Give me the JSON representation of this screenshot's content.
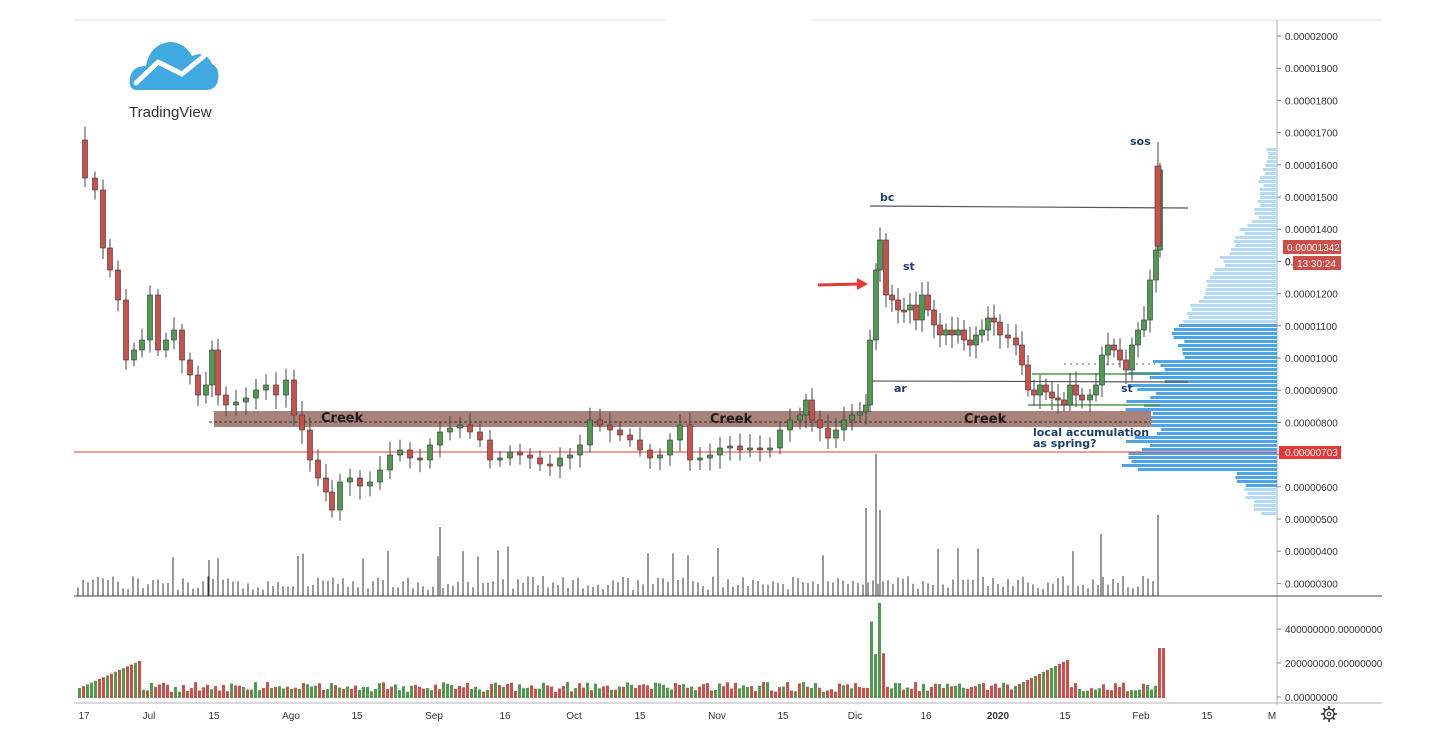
{
  "branding": {
    "logo_text": "TradingView"
  },
  "price_axis": {
    "ticks": [
      "0.00002000",
      "0.00001900",
      "0.00001800",
      "0.00001700",
      "0.00001600",
      "0.00001500",
      "0.00001400",
      "0.00001300",
      "0.00001200",
      "0.00001100",
      "0.00001000",
      "0.00000900",
      "0.00000800",
      "0.00000700",
      "0.00000600",
      "0.00000500",
      "0.00000400",
      "0.00000300"
    ],
    "current_price_label": "0.00001342",
    "countdown_label": "13:30:24",
    "support_price_label": "0.00000703",
    "partial_label": "0."
  },
  "volume_axis": {
    "ticks": [
      "400000000.00000000",
      "200000000.00000000",
      "0.00000000"
    ]
  },
  "time_axis": {
    "ticks": [
      "17",
      "Jul",
      "15",
      "Ago",
      "15",
      "Sep",
      "16",
      "Oct",
      "15",
      "Nov",
      "15",
      "Dic",
      "16",
      "2020",
      "15",
      "Feb",
      "15",
      "M"
    ]
  },
  "annotations": {
    "bc": "bc",
    "st1": "st",
    "ar": "ar",
    "st2": "st",
    "sos": "sos",
    "creek1": "Creek",
    "creek2": "Creek",
    "creek3": "Creek",
    "local_line1": "local accumulation",
    "local_line2": "as spring?"
  },
  "colors": {
    "up": "#4f9a4f",
    "down": "#cc4f4a",
    "creek_band": "#a9837a",
    "support_line": "#e53935",
    "profile_dark": "#4da3e8",
    "profile_light": "#b5daf3",
    "badge_red": "#cc4f4a",
    "badge_bright": "#e53935"
  },
  "chart_data": {
    "type": "candlestick",
    "y_range": [
      2.8e-06,
      2.06e-05
    ],
    "x_ticks": [
      "17",
      "Jul",
      "15",
      "Ago",
      "15",
      "Sep",
      "16",
      "Oct",
      "15",
      "Nov",
      "15",
      "Dic",
      "16",
      "2020",
      "15",
      "Feb",
      "15",
      "M"
    ],
    "resistance_bc": 1.47e-05,
    "support_ar": 9.2e-06,
    "creek_zone": [
      7.9e-06,
      8.3e-06
    ],
    "spring_level": 7.03e-06,
    "last_close": 1.342e-05,
    "session_high": 1.67e-05,
    "spring_range": [
      8.5e-06,
      9.5e-06
    ]
  }
}
